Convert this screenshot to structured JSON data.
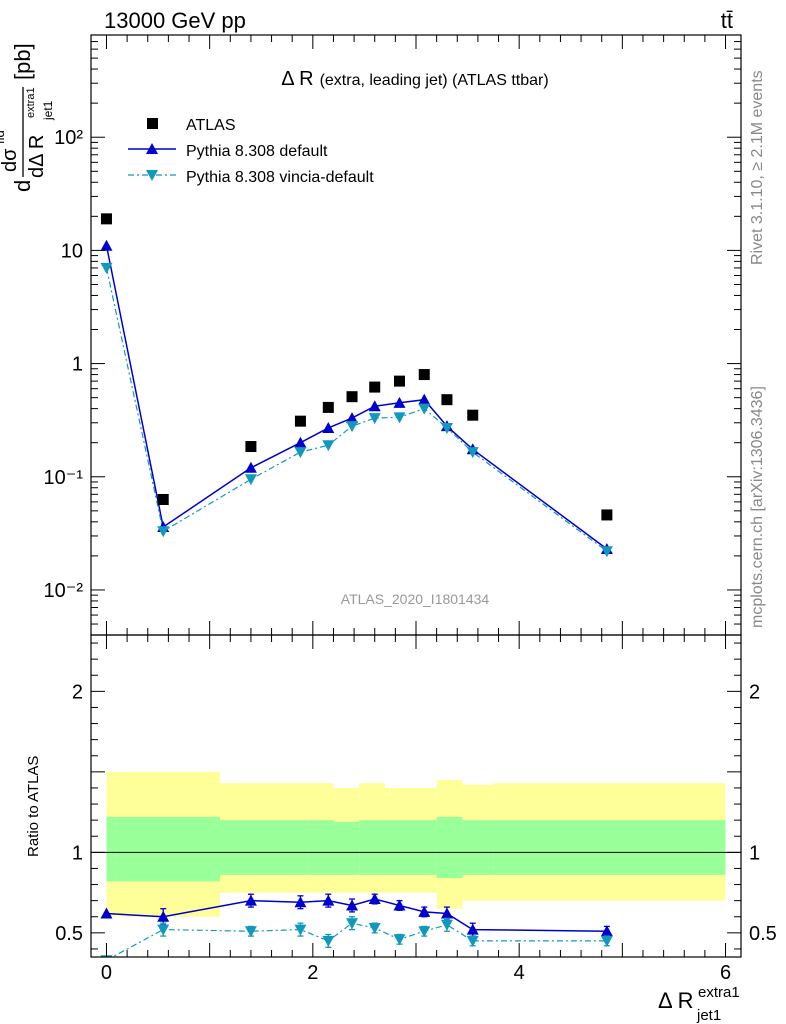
{
  "header": {
    "left": "13000 GeV pp",
    "right": "tt̄"
  },
  "side_text": {
    "events": "Rivet 3.1.10, ≥ 2.1M events",
    "site": "mcplots.cern.ch [arXiv:1306.3436]"
  },
  "chart_data": [
    {
      "type": "scatter",
      "title": "Δ R (extra, leading jet) (ATLAS ttbar)",
      "title_main": "Δ R",
      "title_sub": "(extra, leading jet) (ATLAS ttbar)",
      "watermark": "ATLAS_2020_I1801434",
      "ylabel": "dσfid / dΔ R jet1 extra1 [pb]",
      "ylabel_parts": {
        "d": "d",
        "sigma": "dσ",
        "sigma_sup": "fid",
        "den": "dΔ R",
        "den_sub": "jet1",
        "den_sup": "extra1",
        "unit": "[pb]"
      },
      "yscale": "log",
      "xlim": [
        -0.15,
        6.15
      ],
      "ylim": [
        0.004,
        800
      ],
      "y_tick_labels": [
        "10⁻²",
        "10⁻¹",
        "1",
        "10",
        "10²"
      ],
      "legend_position": "top-left",
      "series": [
        {
          "name": "ATLAS",
          "marker": "square",
          "color": "#000000",
          "x": [
            0.0,
            0.55,
            1.4,
            1.88,
            2.15,
            2.38,
            2.6,
            2.84,
            3.08,
            3.3,
            3.55,
            4.85
          ],
          "values": [
            19,
            0.063,
            0.185,
            0.31,
            0.41,
            0.51,
            0.62,
            0.7,
            0.8,
            0.48,
            0.35,
            0.046
          ]
        },
        {
          "name": "Pythia 8.308 default",
          "marker": "triangle-up",
          "color": "#0000cc",
          "line": "solid",
          "x": [
            0.0,
            0.55,
            1.4,
            1.88,
            2.15,
            2.38,
            2.6,
            2.84,
            3.08,
            3.3,
            3.55,
            4.85
          ],
          "values": [
            11,
            0.036,
            0.12,
            0.2,
            0.27,
            0.33,
            0.42,
            0.45,
            0.48,
            0.28,
            0.175,
            0.023
          ]
        },
        {
          "name": "Pythia 8.308 vincia-default",
          "marker": "triangle-down",
          "color": "#1199bb",
          "line": "dash-dot",
          "x": [
            0.0,
            0.55,
            1.4,
            1.88,
            2.15,
            2.38,
            2.6,
            2.84,
            3.08,
            3.3,
            3.55,
            4.85
          ],
          "values": [
            7,
            0.033,
            0.095,
            0.165,
            0.19,
            0.28,
            0.33,
            0.335,
            0.4,
            0.27,
            0.165,
            0.022
          ]
        }
      ]
    },
    {
      "type": "scatter",
      "ylabel": "Ratio to ATLAS",
      "xlabel": "Δ R jet1 extra1",
      "xlabel_parts": {
        "main": "Δ R",
        "sub": "jet1",
        "sup": "extra1"
      },
      "xlim": [
        -0.15,
        6.15
      ],
      "ylim": [
        0.35,
        2.35
      ],
      "x_ticks": [
        0,
        2,
        4,
        6
      ],
      "y_ticks": [
        0.5,
        1,
        2
      ],
      "reference_line": 1,
      "bands": {
        "bins": [
          0.0,
          0.1,
          1.1,
          1.95,
          2.2,
          2.45,
          2.7,
          3.2,
          3.45,
          3.75,
          6.0
        ],
        "outer_lo": [
          0.6,
          0.6,
          0.75,
          0.75,
          0.75,
          0.75,
          0.75,
          0.65,
          0.7,
          0.7
        ],
        "outer_hi": [
          1.5,
          1.5,
          1.43,
          1.43,
          1.4,
          1.43,
          1.4,
          1.45,
          1.42,
          1.43
        ],
        "inner_lo": [
          0.82,
          0.82,
          0.86,
          0.86,
          0.86,
          0.86,
          0.86,
          0.84,
          0.86,
          0.86
        ],
        "inner_hi": [
          1.22,
          1.22,
          1.2,
          1.2,
          1.19,
          1.2,
          1.2,
          1.22,
          1.2,
          1.2
        ],
        "outer_color": "#ffff99",
        "inner_color": "#99ff99"
      },
      "series": [
        {
          "name": "Pythia 8.308 default",
          "color": "#0000cc",
          "x": [
            0.0,
            0.55,
            1.4,
            1.88,
            2.15,
            2.38,
            2.6,
            2.84,
            3.08,
            3.3,
            3.55,
            4.85
          ],
          "values": [
            0.62,
            0.6,
            0.7,
            0.69,
            0.7,
            0.67,
            0.71,
            0.67,
            0.63,
            0.62,
            0.52,
            0.51
          ],
          "errors": [
            0.0,
            0.05,
            0.04,
            0.04,
            0.04,
            0.04,
            0.03,
            0.03,
            0.03,
            0.04,
            0.04,
            0.03
          ]
        },
        {
          "name": "Pythia 8.308 vincia-default",
          "color": "#1199bb",
          "x": [
            0.0,
            0.55,
            1.4,
            1.88,
            2.15,
            2.38,
            2.6,
            2.84,
            3.08,
            3.3,
            3.55,
            4.85
          ],
          "values": [
            0.33,
            0.52,
            0.51,
            0.52,
            0.45,
            0.56,
            0.53,
            0.46,
            0.51,
            0.55,
            0.45,
            0.45
          ],
          "errors": [
            0.0,
            0.04,
            0.03,
            0.04,
            0.04,
            0.04,
            0.03,
            0.03,
            0.03,
            0.04,
            0.03,
            0.03
          ]
        }
      ]
    }
  ]
}
